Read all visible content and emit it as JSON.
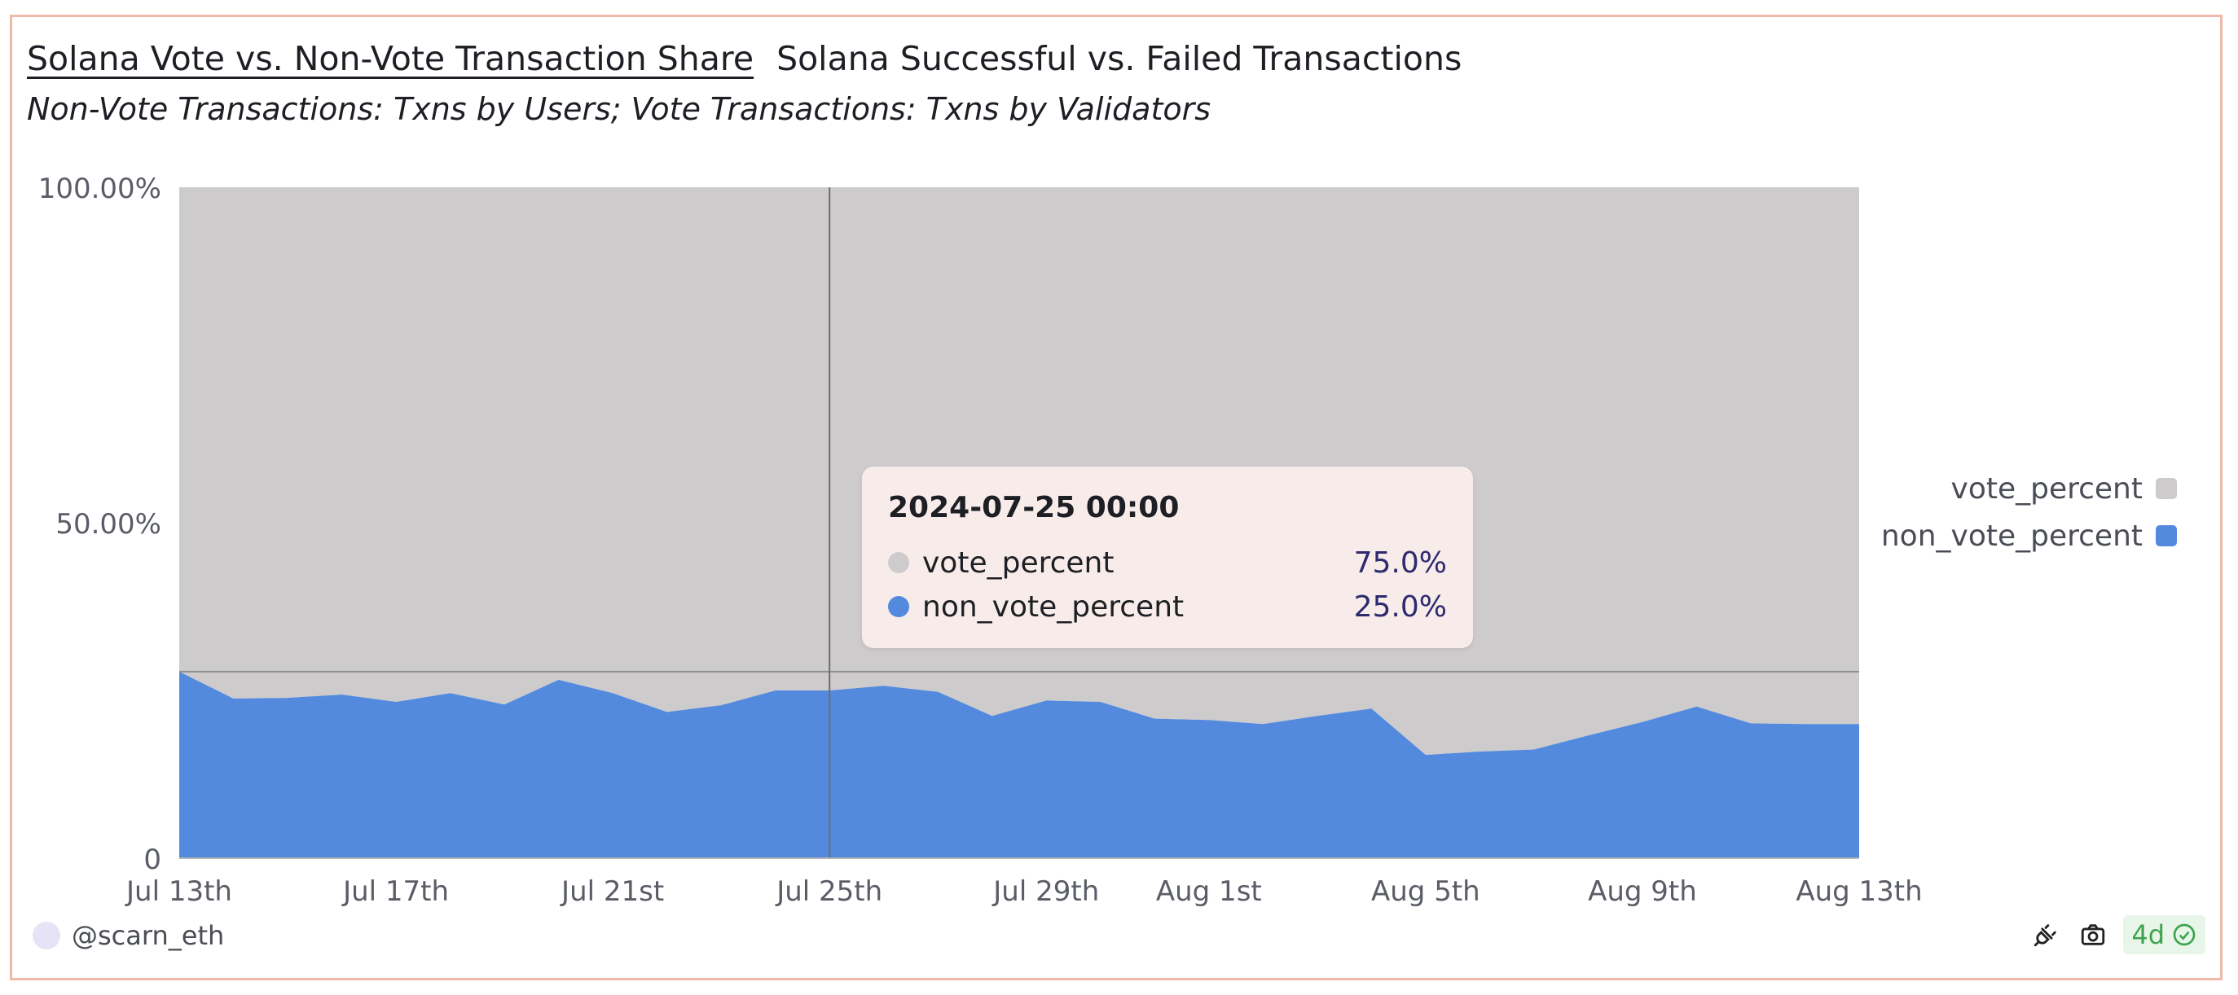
{
  "tabs": {
    "active": "Solana Vote vs. Non-Vote Transaction Share",
    "other": "Solana Successful vs. Failed Transactions"
  },
  "subtitle": "Non-Vote Transactions: Txns by Users; Vote Transactions: Txns by Validators",
  "colors": {
    "vote": "#cdcbcc",
    "non_vote": "#548ade",
    "tooltip_bg": "#f8ecea"
  },
  "chart_data": {
    "type": "area",
    "stacked": true,
    "normalized": true,
    "x": [
      "2024-07-13",
      "2024-07-14",
      "2024-07-15",
      "2024-07-16",
      "2024-07-17",
      "2024-07-18",
      "2024-07-19",
      "2024-07-20",
      "2024-07-21",
      "2024-07-22",
      "2024-07-23",
      "2024-07-24",
      "2024-07-25",
      "2024-07-26",
      "2024-07-27",
      "2024-07-28",
      "2024-07-29",
      "2024-07-30",
      "2024-07-31",
      "2024-08-01",
      "2024-08-02",
      "2024-08-03",
      "2024-08-04",
      "2024-08-05",
      "2024-08-06",
      "2024-08-07",
      "2024-08-08",
      "2024-08-09",
      "2024-08-10",
      "2024-08-11",
      "2024-08-12",
      "2024-08-13"
    ],
    "x_tick_labels": [
      {
        "label": "Jul 13th",
        "date": "2024-07-13"
      },
      {
        "label": "Jul 17th",
        "date": "2024-07-17"
      },
      {
        "label": "Jul 21st",
        "date": "2024-07-21"
      },
      {
        "label": "Jul 25th",
        "date": "2024-07-25"
      },
      {
        "label": "Jul 29th",
        "date": "2024-07-29"
      },
      {
        "label": "Aug 1st",
        "date": "2024-08-01"
      },
      {
        "label": "Aug 5th",
        "date": "2024-08-05"
      },
      {
        "label": "Aug 9th",
        "date": "2024-08-09"
      },
      {
        "label": "Aug 13th",
        "date": "2024-08-13"
      }
    ],
    "y_tick_labels": [
      "0",
      "50.00%",
      "100.00%"
    ],
    "ylim": [
      0,
      100
    ],
    "series": [
      {
        "name": "non_vote_percent",
        "color": "#548ade",
        "values": [
          27.8,
          23.8,
          23.9,
          24.4,
          23.3,
          24.6,
          22.9,
          26.6,
          24.6,
          21.8,
          22.8,
          25.0,
          25.0,
          25.7,
          24.8,
          21.2,
          23.5,
          23.3,
          20.8,
          20.6,
          20.0,
          21.2,
          22.3,
          15.4,
          15.9,
          16.2,
          18.3,
          20.3,
          22.6,
          20.1,
          20.0,
          20.0
        ]
      },
      {
        "name": "vote_percent",
        "color": "#cdcbcc",
        "values": [
          72.2,
          76.2,
          76.1,
          75.6,
          76.7,
          75.4,
          77.1,
          73.4,
          75.4,
          78.2,
          77.2,
          75.0,
          75.0,
          74.3,
          75.2,
          78.8,
          76.5,
          76.7,
          79.2,
          79.4,
          80.0,
          78.8,
          77.7,
          84.6,
          84.1,
          83.8,
          81.7,
          79.7,
          77.4,
          79.9,
          80.0,
          80.0
        ]
      }
    ],
    "legend": {
      "placement": "right",
      "entries": [
        "vote_percent",
        "non_vote_percent"
      ]
    },
    "crosshair_date": "2024-07-25",
    "tooltip": {
      "title": "2024-07-25 00:00",
      "rows": [
        {
          "name": "vote_percent",
          "value": "75.0%"
        },
        {
          "name": "non_vote_percent",
          "value": "25.0%"
        }
      ]
    }
  },
  "footer": {
    "user": "@scarn_eth",
    "age": "4d",
    "icons": [
      "power-plug-icon",
      "camera-icon",
      "check-circle-icon"
    ]
  }
}
